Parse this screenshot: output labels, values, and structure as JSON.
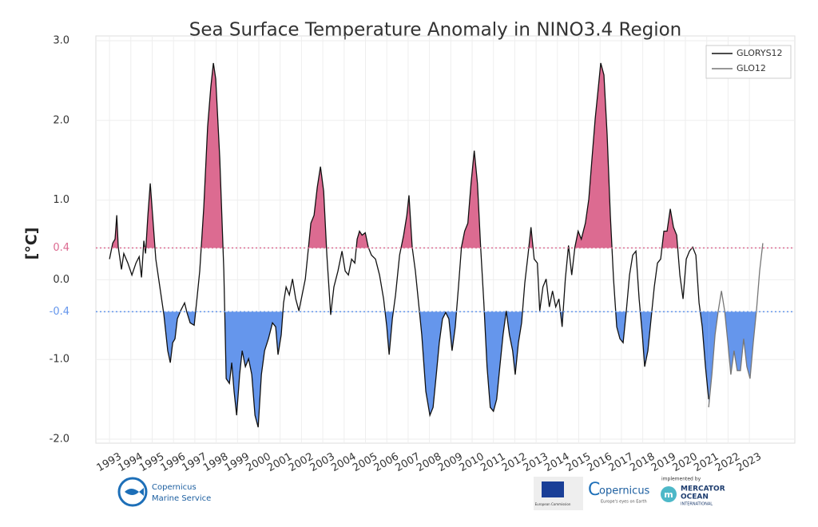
{
  "chart_data": {
    "type": "line",
    "title": "Sea Surface Temperature Anomaly in NINO3.4 Region",
    "y_label": "[°C]",
    "xlim": [
      1992.36,
      2025.13
    ],
    "xticks": [
      1993,
      1994,
      1995,
      1996,
      1997,
      1998,
      1999,
      2000,
      2001,
      2002,
      2003,
      2004,
      2005,
      2006,
      2007,
      2008,
      2009,
      2010,
      2011,
      2012,
      2013,
      2014,
      2015,
      2016,
      2017,
      2018,
      2019,
      2020,
      2021,
      2022,
      2023
    ],
    "ylim": [
      -2.05,
      3.06
    ],
    "yticks": [
      {
        "value": 3.0,
        "label": "3.0"
      },
      {
        "value": 2.0,
        "label": "2.0"
      },
      {
        "value": 1.0,
        "label": "1.0"
      },
      0.4,
      {
        "value": 0.0,
        "label": "0.0"
      },
      -0.4,
      {
        "value": -1.0,
        "label": "-1.0"
      },
      {
        "value": -2.0,
        "label": "-2.0"
      }
    ],
    "grid": true,
    "legend": "upper right",
    "upper_threshold": 0.4,
    "upper_color": "#dc6b91",
    "lower_threshold": -0.4,
    "lower_color": "#6596ec",
    "series": [
      {
        "name": "GLORYS12",
        "color": "#111111",
        "x": [
          1993.0,
          1993.15,
          1993.26,
          1993.34,
          1993.41,
          1993.56,
          1993.67,
          1993.86,
          1994.05,
          1994.24,
          1994.39,
          1994.5,
          1994.61,
          1994.69,
          1994.8,
          1994.91,
          1995.02,
          1995.17,
          1995.36,
          1995.55,
          1995.73,
          1995.85,
          1995.96,
          1996.07,
          1996.18,
          1996.33,
          1996.52,
          1996.63,
          1996.78,
          1996.97,
          1997.08,
          1997.23,
          1997.42,
          1997.6,
          1997.75,
          1997.87,
          1997.98,
          1998.17,
          1998.36,
          1998.47,
          1998.62,
          1998.73,
          1998.84,
          1998.96,
          1999.1,
          1999.22,
          1999.37,
          1999.52,
          1999.67,
          1999.82,
          1999.97,
          2000.12,
          2000.27,
          2000.45,
          2000.64,
          2000.79,
          2000.9,
          2001.05,
          2001.16,
          2001.28,
          2001.43,
          2001.58,
          2001.73,
          2001.88,
          2002.03,
          2002.18,
          2002.33,
          2002.44,
          2002.59,
          2002.74,
          2002.89,
          2003.04,
          2003.19,
          2003.37,
          2003.52,
          2003.71,
          2003.9,
          2004.05,
          2004.2,
          2004.35,
          2004.5,
          2004.61,
          2004.72,
          2004.84,
          2004.99,
          2005.13,
          2005.28,
          2005.47,
          2005.66,
          2005.85,
          2006.0,
          2006.11,
          2006.26,
          2006.41,
          2006.6,
          2006.79,
          2006.94,
          2007.04,
          2007.19,
          2007.34,
          2007.49,
          2007.64,
          2007.83,
          2008.02,
          2008.17,
          2008.32,
          2008.46,
          2008.61,
          2008.76,
          2008.91,
          2009.06,
          2009.21,
          2009.36,
          2009.5,
          2009.65,
          2009.8,
          2009.95,
          2010.1,
          2010.25,
          2010.4,
          2010.55,
          2010.7,
          2010.85,
          2011.0,
          2011.15,
          2011.3,
          2011.45,
          2011.6,
          2011.75,
          2011.9,
          2012.02,
          2012.17,
          2012.32,
          2012.47,
          2012.62,
          2012.76,
          2012.91,
          2013.06,
          2013.17,
          2013.32,
          2013.47,
          2013.62,
          2013.77,
          2013.92,
          2014.07,
          2014.22,
          2014.37,
          2014.52,
          2014.67,
          2014.82,
          2014.97,
          2015.12,
          2015.31,
          2015.47,
          2015.62,
          2015.77,
          2015.92,
          2016.03,
          2016.18,
          2016.33,
          2016.48,
          2016.63,
          2016.78,
          2016.93,
          2017.08,
          2017.23,
          2017.38,
          2017.53,
          2017.68,
          2017.83,
          2017.98,
          2018.09,
          2018.24,
          2018.39,
          2018.54,
          2018.69,
          2018.84,
          2018.99,
          2019.14,
          2019.29,
          2019.44,
          2019.59,
          2019.74,
          2019.89,
          2020.04,
          2020.19,
          2020.34,
          2020.49,
          2020.64,
          2020.79,
          2020.94,
          2021.09
        ],
        "values": [
          0.26,
          0.46,
          0.51,
          0.81,
          0.41,
          0.13,
          0.33,
          0.21,
          0.06,
          0.21,
          0.29,
          0.03,
          0.49,
          0.33,
          0.81,
          1.21,
          0.81,
          0.26,
          -0.09,
          -0.44,
          -0.89,
          -1.04,
          -0.79,
          -0.74,
          -0.49,
          -0.39,
          -0.29,
          -0.41,
          -0.54,
          -0.57,
          -0.29,
          0.11,
          0.91,
          1.92,
          2.42,
          2.72,
          2.52,
          1.52,
          0.11,
          -1.24,
          -1.3,
          -1.04,
          -1.4,
          -1.7,
          -1.19,
          -0.89,
          -1.09,
          -0.99,
          -1.19,
          -1.7,
          -1.85,
          -1.19,
          -0.89,
          -0.74,
          -0.54,
          -0.59,
          -0.94,
          -0.69,
          -0.29,
          -0.09,
          -0.19,
          0.01,
          -0.24,
          -0.39,
          -0.19,
          0.01,
          0.41,
          0.71,
          0.81,
          1.16,
          1.42,
          1.11,
          0.31,
          -0.44,
          -0.09,
          0.11,
          0.36,
          0.11,
          0.06,
          0.26,
          0.21,
          0.51,
          0.61,
          0.56,
          0.59,
          0.41,
          0.31,
          0.26,
          0.06,
          -0.24,
          -0.59,
          -0.94,
          -0.49,
          -0.19,
          0.31,
          0.56,
          0.81,
          1.06,
          0.41,
          0.11,
          -0.29,
          -0.69,
          -1.4,
          -1.7,
          -1.6,
          -1.19,
          -0.79,
          -0.49,
          -0.41,
          -0.49,
          -0.89,
          -0.59,
          -0.09,
          0.41,
          0.61,
          0.71,
          1.21,
          1.62,
          1.21,
          0.41,
          -0.29,
          -1.09,
          -1.6,
          -1.65,
          -1.5,
          -1.09,
          -0.69,
          -0.39,
          -0.69,
          -0.89,
          -1.19,
          -0.79,
          -0.54,
          -0.04,
          0.31,
          0.66,
          0.26,
          0.21,
          -0.39,
          -0.09,
          0.01,
          -0.34,
          -0.14,
          -0.34,
          -0.24,
          -0.59,
          0.01,
          0.43,
          0.06,
          0.41,
          0.61,
          0.51,
          0.71,
          1.01,
          1.52,
          2.02,
          2.42,
          2.72,
          2.57,
          1.82,
          0.81,
          0.01,
          -0.59,
          -0.74,
          -0.79,
          -0.39,
          0.06,
          0.31,
          0.36,
          -0.24,
          -0.69,
          -1.09,
          -0.89,
          -0.49,
          -0.09,
          0.21,
          0.26,
          0.61,
          0.61,
          0.89,
          0.66,
          0.56,
          0.06,
          -0.24,
          0.26,
          0.36,
          0.41,
          0.31,
          -0.29,
          -0.59,
          -1.09,
          -1.5
        ]
      },
      {
        "name": "GLO12",
        "color": "#777777",
        "x": [
          2021.09,
          2021.24,
          2021.39,
          2021.54,
          2021.69,
          2021.84,
          2021.99,
          2022.13,
          2022.28,
          2022.43,
          2022.58,
          2022.73,
          2022.88,
          2023.03,
          2023.18,
          2023.33,
          2023.48,
          2023.63
        ],
        "values": [
          -1.6,
          -1.19,
          -0.69,
          -0.39,
          -0.14,
          -0.39,
          -0.79,
          -1.19,
          -0.89,
          -1.14,
          -1.14,
          -0.74,
          -1.09,
          -1.24,
          -0.79,
          -0.39,
          0.11,
          0.46
        ]
      }
    ]
  },
  "footer": {
    "cms_line1": "Copernicus",
    "cms_line2": "Marine Service",
    "ec": "European Commission",
    "copernicus": "opernicus",
    "copernicus_c": "C",
    "copernicus_tag": "Europe's eyes on Earth",
    "implemented": "implemented by",
    "mercator1": "MERCATOR",
    "mercator2": "OCEAN",
    "mercator3": "INTERNATIONAL"
  }
}
